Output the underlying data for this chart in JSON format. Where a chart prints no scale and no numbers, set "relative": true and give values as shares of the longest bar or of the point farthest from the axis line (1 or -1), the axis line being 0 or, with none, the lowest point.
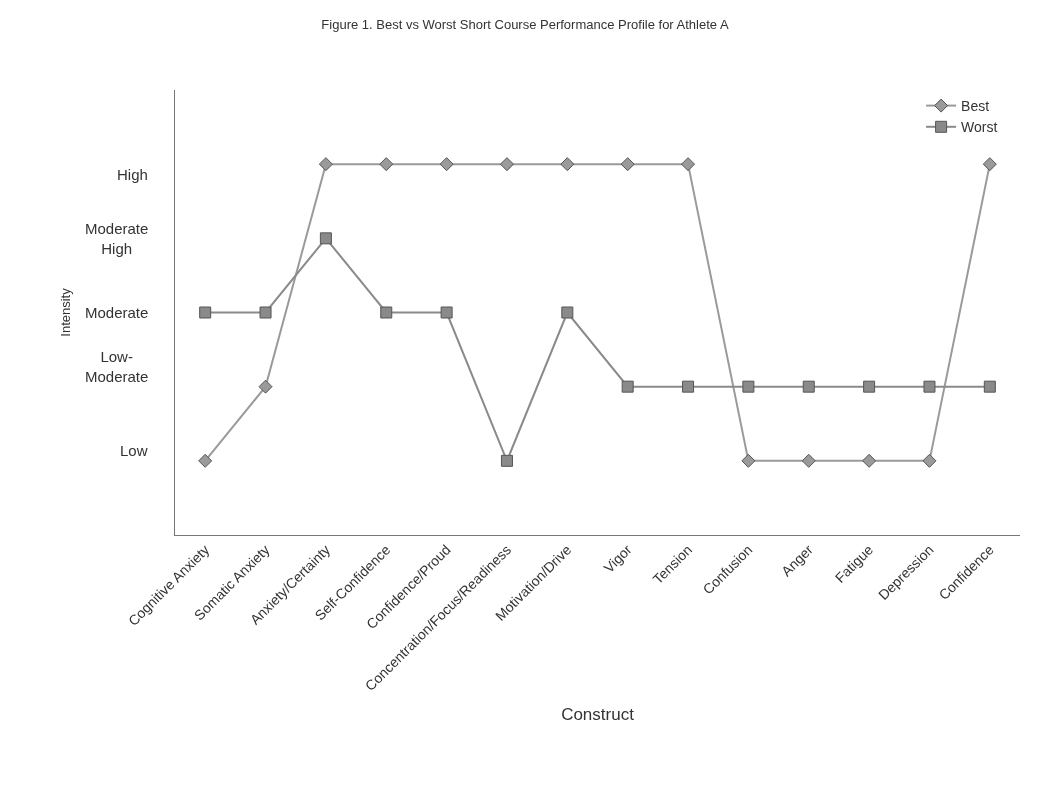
{
  "chart_data": {
    "type": "line",
    "title": "Figure 1. Best vs Worst Short Course Performance Profile for Athlete A",
    "xlabel": "Construct",
    "ylabel": "Intensity",
    "categories": [
      "Cognitive Anxiety",
      "Somatic Anxiety",
      "Anxiety/Certainty",
      "Self-Confidence",
      "Confidence/Proud",
      "Concentration/Focus/Readiness",
      "Motivation/Drive",
      "Vigor",
      "Tension",
      "Confusion",
      "Anger",
      "Fatigue",
      "Depression",
      "Confidence"
    ],
    "relative": true,
    "series": [
      {
        "name": "Best",
        "color": "#9a9a9a",
        "marker": "diamond",
        "values": [
          0.2,
          0.4,
          1,
          1,
          1,
          1,
          1,
          1,
          1,
          0.2,
          0.2,
          0.2,
          0.2,
          1
        ]
      },
      {
        "name": "Worst",
        "color": "#8a8a8a",
        "marker": "square",
        "values": [
          0.6,
          0.6,
          0.8,
          0.6,
          0.6,
          0.2,
          0.6,
          0.4,
          0.4,
          0.4,
          0.4,
          0.4,
          0.4,
          0.4
        ]
      }
    ],
    "annotations": [
      "Low",
      "Low-\nModerate",
      "Moderate",
      "Moderate\nHigh",
      "High"
    ],
    "legend": "top right",
    "line_style": "solid"
  }
}
